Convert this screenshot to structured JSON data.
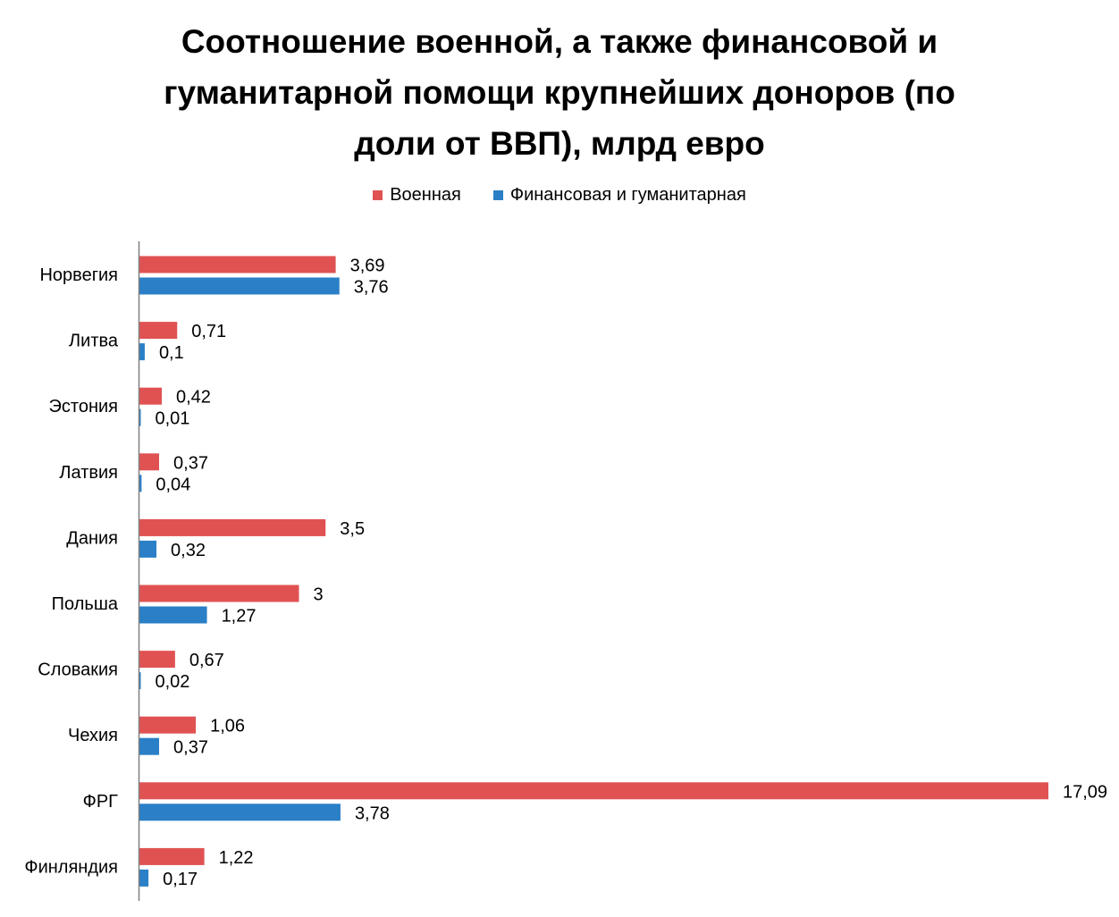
{
  "chart_data": {
    "type": "bar",
    "orientation": "horizontal",
    "title_lines": [
      "Соотношение военной, а также финансовой и",
      "гуманитарной помощи крупнейших доноров (по",
      "доли от ВВП), млрд евро"
    ],
    "categories": [
      "Норвегия",
      "Литва",
      "Эстония",
      "Латвия",
      "Дания",
      "Польша",
      "Словакия",
      "Чехия",
      "ФРГ",
      "Финляндия"
    ],
    "series": [
      {
        "name": "Военная",
        "color": "#e05252",
        "values": [
          3.69,
          0.71,
          0.42,
          0.37,
          3.5,
          3,
          0.67,
          1.06,
          17.09,
          1.22
        ],
        "labels": [
          "3,69",
          "0,71",
          "0,42",
          "0,37",
          "3,5",
          "3",
          "0,67",
          "1,06",
          "17,09",
          "1,22"
        ]
      },
      {
        "name": "Финансовая и гуманитарная",
        "color": "#2a7fc6",
        "values": [
          3.76,
          0.1,
          0.01,
          0.04,
          0.32,
          1.27,
          0.02,
          0.37,
          3.78,
          0.17
        ],
        "labels": [
          "3,76",
          "0,1",
          "0,01",
          "0,04",
          "0,32",
          "1,27",
          "0,02",
          "0,37",
          "3,78",
          "0,17"
        ]
      }
    ],
    "legend_position": "top",
    "xlim": [
      0,
      17.09
    ],
    "grid": false,
    "axis_color": "#808080"
  }
}
